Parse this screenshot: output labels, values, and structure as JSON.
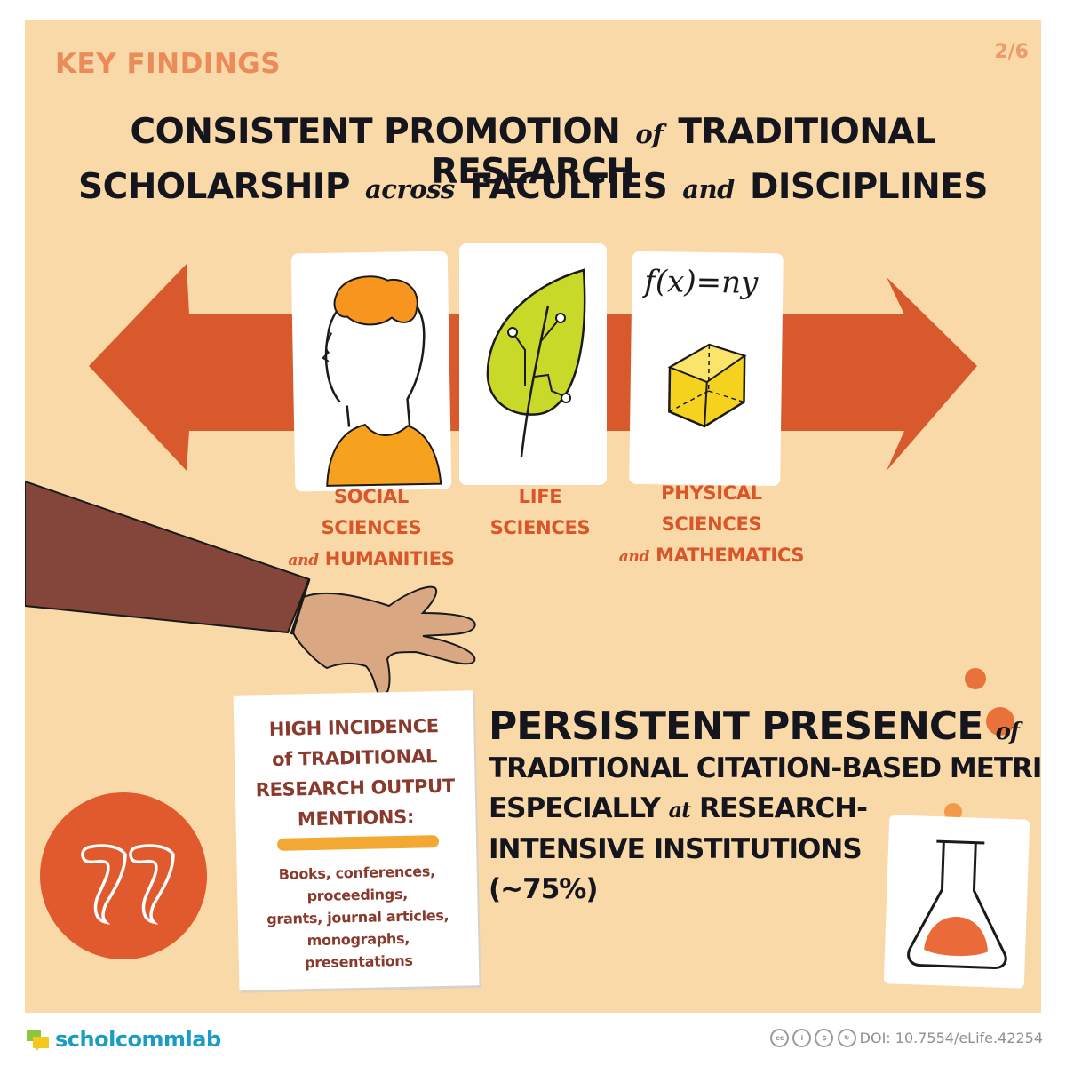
{
  "header": {
    "section_label": "KEY FINDINGS",
    "page_indicator": "2/6"
  },
  "headline": {
    "line1_a": "CONSISTENT PROMOTION",
    "line1_b": "of",
    "line1_c": "TRADITIONAL RESEARCH",
    "line2_a": "SCHOLARSHIP",
    "line2_b": "across",
    "line2_c": "FACULTIES",
    "line2_d": "and",
    "line2_e": "DISCIPLINES"
  },
  "disciplines": [
    {
      "line1": "SOCIAL SCIENCES",
      "connector": "and",
      "line2": "HUMANITIES",
      "icon": "person-head-icon"
    },
    {
      "line1": "LIFE",
      "line2": "SCIENCES",
      "icon": "leaf-circuit-icon"
    },
    {
      "line1": "PHYSICAL SCIENCES",
      "connector": "and",
      "line2": "MATHEMATICS",
      "icon": "formula-cube-icon"
    }
  ],
  "formula": "f(x)=ny",
  "document": {
    "title_lines": [
      "HIGH INCIDENCE",
      "of TRADITIONAL",
      "RESEARCH OUTPUT",
      "MENTIONS:"
    ],
    "items": [
      "Books, conferences,",
      "proceedings,",
      "grants, journal articles,",
      "monographs,",
      "presentations"
    ]
  },
  "finding": {
    "title": "PERSISTENT PRESENCE",
    "title_connector": "of",
    "line2": "TRADITIONAL CITATION-BASED METRICS,",
    "line3_a": "ESPECIALLY",
    "line3_b": "at",
    "line3_c": "RESEARCH-",
    "line4": "INTENSIVE INSTITUTIONS",
    "line5": "(~75%)"
  },
  "footer": {
    "brand_prefix": "schol",
    "brand_suffix": "commlab",
    "doi": "DOI: 10.7554/eLife.42254",
    "license_icons": [
      "cc",
      "by",
      "nc",
      "sa"
    ]
  },
  "colors": {
    "background": "#fad9a8",
    "accent_orange": "#d9562b",
    "arrow": "#d85a2c",
    "text_dark": "#15151d",
    "doc_text": "#8a3a2c",
    "brand": "#1a9cc7"
  }
}
